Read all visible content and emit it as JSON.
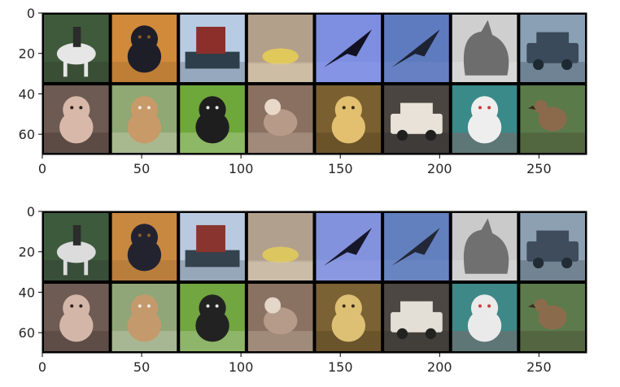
{
  "chart_data": [
    {
      "type": "image",
      "grid": false,
      "xlim": [
        0,
        274
      ],
      "ylim": [
        70,
        0
      ],
      "xticks": [
        0,
        50,
        100,
        150,
        200,
        250
      ],
      "yticks": [
        0,
        20,
        40,
        60
      ],
      "tile_grid": {
        "rows": 2,
        "cols": 8
      },
      "tiles": [
        {
          "subject": "horse-rider",
          "bg": "#3f5a3a",
          "fg": "#e6e6e6",
          "accent": "#2b2b2b"
        },
        {
          "subject": "dog",
          "bg": "#d08a3a",
          "fg": "#1e1e28",
          "accent": "#8a5a2a"
        },
        {
          "subject": "ship",
          "bg": "#b7cbe3",
          "fg": "#8c2f2a",
          "accent": "#2e3e4a"
        },
        {
          "subject": "boat",
          "bg": "#b3a08b",
          "fg": "#e0c85a",
          "accent": "#d8c9b0"
        },
        {
          "subject": "airplane",
          "bg": "#7e8ee0",
          "fg": "#111122",
          "accent": "#9aa8ee"
        },
        {
          "subject": "airplane",
          "bg": "#5f7bc0",
          "fg": "#1d2333",
          "accent": "#7a90cc"
        },
        {
          "subject": "cat",
          "bg": "#cfcfcf",
          "fg": "#6d6d6d",
          "accent": "#f0f0f0"
        },
        {
          "subject": "car",
          "bg": "#8aa0b4",
          "fg": "#3a4a5a",
          "accent": "#1e2a33"
        },
        {
          "subject": "dog",
          "bg": "#6d5a52",
          "fg": "#d8b8a8",
          "accent": "#2a1e1a"
        },
        {
          "subject": "dog",
          "bg": "#8fa874",
          "fg": "#c89a68",
          "accent": "#f2ece2"
        },
        {
          "subject": "dog",
          "bg": "#6fa83a",
          "fg": "#1e1e1e",
          "accent": "#e8e8e8"
        },
        {
          "subject": "deer",
          "bg": "#8a7060",
          "fg": "#b89a88",
          "accent": "#e8d8c8"
        },
        {
          "subject": "dog",
          "bg": "#7a6030",
          "fg": "#e2c070",
          "accent": "#3a2a10"
        },
        {
          "subject": "car",
          "bg": "#4a4540",
          "fg": "#e8e2d8",
          "accent": "#20201e"
        },
        {
          "subject": "dog",
          "bg": "#3a8a8a",
          "fg": "#eeeeee",
          "accent": "#c83a3a"
        },
        {
          "subject": "bird",
          "bg": "#5a7a4a",
          "fg": "#8a6a4a",
          "accent": "#3a2a1e"
        }
      ]
    },
    {
      "type": "image",
      "grid": false,
      "xlim": [
        0,
        274
      ],
      "ylim": [
        70,
        0
      ],
      "xticks": [
        0,
        50,
        100,
        150,
        200,
        250
      ],
      "yticks": [
        0,
        20,
        40,
        60
      ],
      "tile_grid": {
        "rows": 2,
        "cols": 8
      },
      "tiles": [
        {
          "subject": "horse-rider",
          "bg": "#3e5a3c",
          "fg": "#dcdcdc",
          "accent": "#2c2c2c"
        },
        {
          "subject": "dog",
          "bg": "#c98840",
          "fg": "#232330",
          "accent": "#8a5c2e"
        },
        {
          "subject": "ship",
          "bg": "#b9c9df",
          "fg": "#8a3430",
          "accent": "#33424d"
        },
        {
          "subject": "boat",
          "bg": "#b1a08d",
          "fg": "#dcc660",
          "accent": "#d6c8b2"
        },
        {
          "subject": "airplane",
          "bg": "#8292dc",
          "fg": "#17172a",
          "accent": "#9eacea"
        },
        {
          "subject": "airplane",
          "bg": "#6380be",
          "fg": "#222838",
          "accent": "#7c92ca"
        },
        {
          "subject": "cat",
          "bg": "#cacaca",
          "fg": "#707070",
          "accent": "#ececec"
        },
        {
          "subject": "car",
          "bg": "#8ca0b2",
          "fg": "#3e4c5c",
          "accent": "#222c35"
        },
        {
          "subject": "dog",
          "bg": "#6e5c54",
          "fg": "#d4b6a8",
          "accent": "#2c201c"
        },
        {
          "subject": "dog",
          "bg": "#90a678",
          "fg": "#c49a6c",
          "accent": "#eeeae2"
        },
        {
          "subject": "dog",
          "bg": "#72a640",
          "fg": "#222222",
          "accent": "#e4e4e4"
        },
        {
          "subject": "deer",
          "bg": "#8a7262",
          "fg": "#b69a8a",
          "accent": "#e4d6c8"
        },
        {
          "subject": "dog",
          "bg": "#7a6234",
          "fg": "#dec074",
          "accent": "#3c2c14"
        },
        {
          "subject": "car",
          "bg": "#4c4742",
          "fg": "#e4dfd6",
          "accent": "#222220"
        },
        {
          "subject": "dog",
          "bg": "#3e8888",
          "fg": "#eaeaea",
          "accent": "#c43e3e"
        },
        {
          "subject": "bird",
          "bg": "#5c7a4c",
          "fg": "#8a6c4c",
          "accent": "#3c2c20"
        }
      ]
    }
  ]
}
